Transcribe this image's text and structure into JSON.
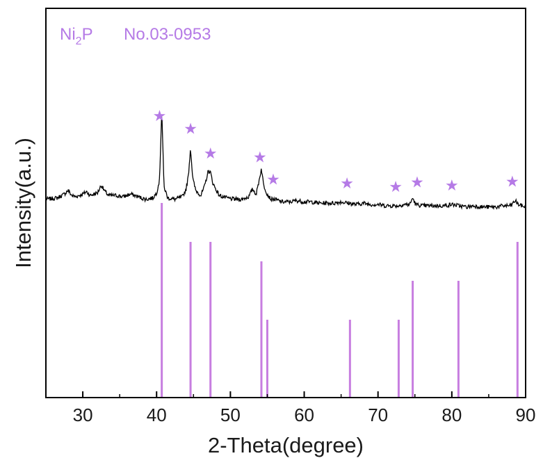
{
  "chart_data": {
    "type": "line",
    "xlabel": "2-Theta(degree)",
    "ylabel": "Intensity(a.u.)",
    "xlim": [
      25,
      90
    ],
    "x_ticks": [
      30,
      40,
      50,
      60,
      70,
      80,
      90
    ],
    "x_tick_labels": [
      "30",
      "40",
      "50",
      "60",
      "70",
      "80",
      "90"
    ],
    "y_ticks": [],
    "grid": false,
    "legend": {
      "position": "top-left",
      "phase_prefix": "Ni",
      "phase_subscript": "2",
      "phase_suffix": "P",
      "card": "No.03-0953"
    },
    "colors": {
      "pattern": "#000000",
      "reference": "#c77ee0",
      "marker": "#b57ae6"
    },
    "series": [
      {
        "role": "measured pattern",
        "x": [
          25.0,
          26.5,
          27.5,
          28.0,
          28.5,
          29.0,
          30.0,
          30.5,
          31.0,
          32.0,
          32.5,
          33.0,
          33.5,
          34.5,
          35.5,
          36.5,
          37.5,
          38.5,
          39.5,
          40.0,
          40.4,
          40.7,
          41.0,
          41.5,
          42.5,
          43.5,
          44.0,
          44.3,
          44.6,
          44.9,
          45.3,
          46.0,
          46.5,
          47.0,
          47.3,
          47.6,
          48.0,
          48.5,
          49.5,
          50.5,
          51.5,
          52.5,
          53.0,
          53.5,
          53.9,
          54.2,
          54.5,
          55.0,
          55.5,
          56.0,
          57.0,
          58.0,
          59.0,
          60.0,
          61.0,
          62.0,
          63.0,
          64.0,
          65.0,
          66.0,
          67.0,
          68.0,
          69.0,
          70.0,
          71.0,
          72.0,
          72.8,
          73.5,
          74.3,
          74.7,
          75.1,
          76.0,
          77.0,
          78.0,
          79.0,
          80.0,
          81.0,
          82.0,
          83.0,
          84.0,
          85.0,
          86.0,
          87.0,
          88.0,
          88.6,
          89.0,
          90.0
        ],
        "y": [
          30,
          31,
          34,
          37,
          33,
          32,
          34,
          36,
          33,
          35,
          41,
          36,
          33,
          33,
          32,
          34,
          32,
          30,
          31,
          35,
          45,
          100,
          40,
          31,
          30,
          32,
          38,
          48,
          70,
          46,
          37,
          33,
          40,
          52,
          51,
          43,
          38,
          33,
          31,
          30,
          30,
          32,
          38,
          34,
          45,
          54,
          41,
          34,
          30,
          30,
          28,
          28,
          29,
          28,
          28,
          27,
          27,
          27,
          28,
          27,
          26,
          27,
          26,
          26,
          25,
          25,
          25,
          26,
          26,
          31,
          26,
          25,
          25,
          25,
          25,
          26,
          25,
          24,
          25,
          24,
          24,
          24,
          25,
          25,
          29,
          26,
          24
        ]
      },
      {
        "role": "reference pattern Ni2P No.03-0953",
        "type": "stick",
        "x": [
          40.7,
          44.6,
          47.3,
          54.2,
          55.0,
          66.2,
          72.8,
          74.7,
          80.9,
          88.9
        ],
        "values": [
          100,
          80,
          80,
          70,
          40,
          40,
          40,
          60,
          60,
          80
        ]
      }
    ],
    "markers": {
      "symbol": "★",
      "count": 10,
      "x": [
        40.4,
        44.6,
        47.3,
        54.0,
        55.8,
        65.8,
        72.4,
        75.3,
        80.0,
        88.2
      ]
    }
  }
}
